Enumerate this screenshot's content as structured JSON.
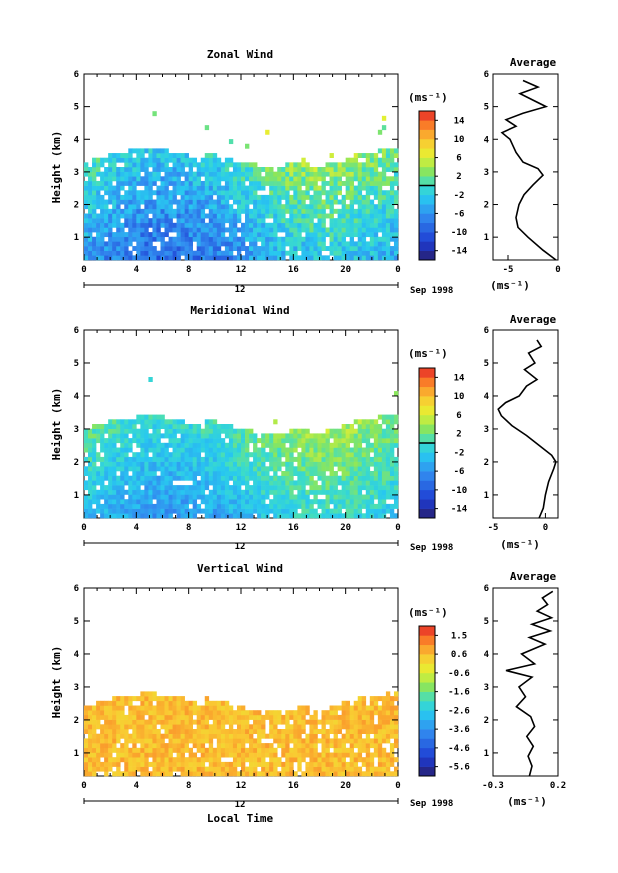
{
  "chart_data": [
    {
      "type": "heatmap",
      "title": "Zonal Wind",
      "xlabel": "",
      "ylabel": "Height (km)",
      "xlim": [
        0,
        24
      ],
      "ylim": [
        0.3,
        6
      ],
      "x_ticks": [
        "0",
        "4",
        "8",
        "12",
        "16",
        "20",
        "0"
      ],
      "y_ticks": [
        "1",
        "2",
        "3",
        "4",
        "5",
        "6"
      ],
      "date_marker": "12",
      "date_label": "Sep 1998",
      "colorbar": {
        "label": "(ms⁻¹)",
        "min": -16,
        "max": 16,
        "ticks": [
          "14",
          "10",
          "6",
          "2",
          "-2",
          "-6",
          "-10",
          "-14"
        ],
        "zero_line": 0
      },
      "data_ceiling_km": 3.3,
      "field_range": [
        -12,
        4
      ],
      "average_profile": {
        "title": "Average",
        "xlabel": "(ms⁻¹)",
        "xlim": [
          -6.5,
          0
        ],
        "x_ticks": [
          "-5",
          "0"
        ],
        "y_ticks": [
          "1",
          "2",
          "3",
          "4",
          "5",
          "6"
        ],
        "height_km": [
          0.3,
          0.6,
          1.0,
          1.3,
          1.6,
          2.0,
          2.3,
          2.6,
          2.9,
          3.1,
          3.3,
          3.6,
          3.8,
          4.0,
          4.2,
          4.4,
          4.6,
          4.8,
          5.0,
          5.2,
          5.4,
          5.6,
          5.8
        ],
        "values": [
          -0.2,
          -1.5,
          -3.0,
          -4.0,
          -4.2,
          -3.9,
          -3.4,
          -2.5,
          -1.5,
          -2.0,
          -3.5,
          -4.2,
          -4.5,
          -4.8,
          -5.6,
          -4.2,
          -5.2,
          -3.5,
          -1.2,
          -2.5,
          -3.8,
          -2.0,
          -3.5
        ]
      }
    },
    {
      "type": "heatmap",
      "title": "Meridional Wind",
      "xlabel": "",
      "ylabel": "Height (km)",
      "xlim": [
        0,
        24
      ],
      "ylim": [
        0.3,
        6
      ],
      "x_ticks": [
        "0",
        "4",
        "8",
        "12",
        "16",
        "20",
        "0"
      ],
      "y_ticks": [
        "1",
        "2",
        "3",
        "4",
        "5",
        "6"
      ],
      "date_marker": "12",
      "date_label": "Sep 1998",
      "colorbar": {
        "label": "(ms⁻¹)",
        "min": -16,
        "max": 16,
        "ticks": [
          "14",
          "10",
          "6",
          "2",
          "-2",
          "-6",
          "-10",
          "-14"
        ],
        "zero_line": 0
      },
      "data_ceiling_km": 3.0,
      "field_range": [
        -8,
        4
      ],
      "average_profile": {
        "title": "Average",
        "xlabel": "(ms⁻¹)",
        "xlim": [
          -5,
          1.2
        ],
        "x_ticks": [
          "-5",
          "0"
        ],
        "y_ticks": [
          "1",
          "2",
          "3",
          "4",
          "5",
          "6"
        ],
        "height_km": [
          0.3,
          0.6,
          1.0,
          1.4,
          1.8,
          2.0,
          2.2,
          2.5,
          2.8,
          3.1,
          3.4,
          3.6,
          3.8,
          4.0,
          4.3,
          4.5,
          4.8,
          5.0,
          5.3,
          5.5,
          5.7
        ],
        "values": [
          -0.6,
          -0.2,
          0.0,
          0.3,
          0.8,
          1.0,
          0.6,
          -0.6,
          -1.8,
          -3.2,
          -4.2,
          -4.5,
          -3.8,
          -2.5,
          -1.8,
          -0.8,
          -2.0,
          -1.0,
          -1.6,
          -0.4,
          -0.8
        ]
      }
    },
    {
      "type": "heatmap",
      "title": "Vertical Wind",
      "xlabel": "Local Time",
      "ylabel": "Height (km)",
      "xlim": [
        0,
        24
      ],
      "ylim": [
        0.3,
        6
      ],
      "x_ticks": [
        "0",
        "4",
        "8",
        "12",
        "16",
        "20",
        "0"
      ],
      "y_ticks": [
        "1",
        "2",
        "3",
        "4",
        "5",
        "6"
      ],
      "date_marker": "12",
      "date_label": "Sep 1998",
      "colorbar": {
        "label": "(ms⁻¹)",
        "min": -6,
        "max": 2,
        "ticks": [
          "1.5",
          "0.6",
          "-0.6",
          "-1.6",
          "-2.6",
          "-3.6",
          "-4.6",
          "-5.6"
        ]
      },
      "data_ceiling_km": 2.4,
      "field_range": [
        -0.6,
        1.0
      ],
      "average_profile": {
        "title": "Average",
        "xlabel": "(ms⁻¹)",
        "xlim": [
          -0.3,
          0.2
        ],
        "x_ticks": [
          "-0.3",
          "0.2"
        ],
        "y_ticks": [
          "1",
          "2",
          "3",
          "4",
          "5",
          "6"
        ],
        "height_km": [
          0.3,
          0.6,
          0.9,
          1.2,
          1.5,
          1.8,
          2.1,
          2.4,
          2.7,
          3.0,
          3.3,
          3.5,
          3.7,
          4.0,
          4.3,
          4.5,
          4.7,
          4.9,
          5.1,
          5.3,
          5.5,
          5.7,
          5.9
        ],
        "values": [
          -0.02,
          0.0,
          -0.03,
          0.01,
          -0.04,
          0.02,
          -0.01,
          -0.12,
          -0.05,
          -0.1,
          0.0,
          -0.2,
          0.02,
          -0.08,
          0.1,
          -0.02,
          0.14,
          0.0,
          0.15,
          0.04,
          0.12,
          0.08,
          0.16
        ]
      }
    }
  ]
}
